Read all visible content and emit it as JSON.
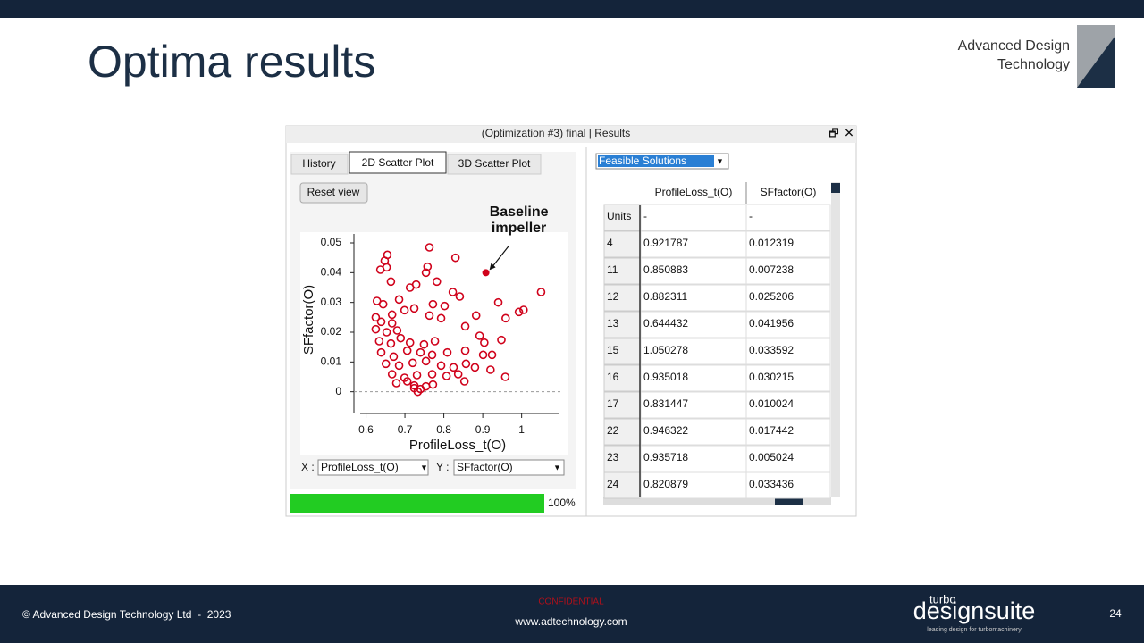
{
  "slide": {
    "title": "Optima results",
    "logo": [
      "Advanced Design",
      "Technology"
    ],
    "page": "24"
  },
  "window": {
    "title": "(Optimization #3) final | Results",
    "tabs": [
      "History",
      "2D Scatter Plot",
      "3D Scatter Plot"
    ],
    "reset": "Reset view",
    "filter": "Feasible Solutions",
    "x_label": "X :",
    "x_select": "ProfileLoss_t(O)",
    "y_label": "Y :",
    "y_select": "SFfactor(O)",
    "progress": {
      "value": 100,
      "label": "100%"
    }
  },
  "chart_data": {
    "type": "scatter",
    "xlabel": "ProfileLoss_t(O)",
    "ylabel": "SFfactor(O)",
    "xlim": [
      0.585,
      1.095
    ],
    "ylim": [
      -0.007,
      0.053
    ],
    "xticks": [
      0.6,
      0.7,
      0.8,
      0.9,
      1
    ],
    "yticks": [
      0,
      0.01,
      0.02,
      0.03,
      0.04,
      0.05
    ],
    "series": [
      {
        "color": "#d0021b",
        "x": [
          0.655,
          0.648,
          0.637,
          0.653,
          0.763,
          0.83,
          0.758,
          0.754,
          0.664,
          0.729,
          0.713,
          0.782,
          0.823,
          0.841,
          1.05,
          0.94,
          1.005,
          0.993,
          0.628,
          0.644,
          0.685,
          0.699,
          0.724,
          0.772,
          0.802,
          0.883,
          0.959,
          0.625,
          0.639,
          0.667,
          0.763,
          0.793,
          0.855,
          0.625,
          0.653,
          0.68,
          0.892,
          0.904,
          0.948,
          0.634,
          0.664,
          0.713,
          0.749,
          0.777,
          0.639,
          0.671,
          0.706,
          0.74,
          0.77,
          0.809,
          0.855,
          0.901,
          0.924,
          0.651,
          0.685,
          0.72,
          0.754,
          0.793,
          0.825,
          0.857,
          0.88,
          0.92,
          0.667,
          0.699,
          0.731,
          0.77,
          0.807,
          0.837,
          0.958,
          0.678,
          0.706,
          0.724,
          0.74,
          0.754,
          0.772,
          0.853,
          0.733,
          0.724,
          0.667,
          0.689
        ],
        "values": [
          0.046,
          0.044,
          0.041,
          0.0418,
          0.0485,
          0.045,
          0.042,
          0.04,
          0.037,
          0.036,
          0.035,
          0.037,
          0.0335,
          0.032,
          0.0335,
          0.03,
          0.0275,
          0.0268,
          0.0305,
          0.0294,
          0.031,
          0.0274,
          0.028,
          0.0294,
          0.0288,
          0.0256,
          0.0247,
          0.025,
          0.0235,
          0.0259,
          0.0256,
          0.0247,
          0.022,
          0.021,
          0.02,
          0.0206,
          0.0188,
          0.0165,
          0.0174,
          0.017,
          0.0162,
          0.0165,
          0.0159,
          0.017,
          0.0132,
          0.0118,
          0.0138,
          0.0132,
          0.0124,
          0.0132,
          0.0138,
          0.0124,
          0.0124,
          0.0094,
          0.0088,
          0.0097,
          0.0103,
          0.0088,
          0.0082,
          0.0094,
          0.0082,
          0.0074,
          0.0059,
          0.0047,
          0.0056,
          0.0059,
          0.0053,
          0.0059,
          0.005,
          0.0029,
          0.0035,
          0.0021,
          0.0009,
          0.0018,
          0.0024,
          0.0035,
          0,
          0.0012,
          0.023,
          0.018
        ]
      }
    ],
    "annotation": {
      "lines": [
        "Baseline",
        "impeller"
      ],
      "x": 0.908,
      "y": 0.04,
      "color": "#d0021b"
    }
  },
  "table": {
    "header": [
      "ProfileLoss_t(O)",
      "SFfactor(O)"
    ],
    "units": [
      "Units",
      "-",
      "-"
    ],
    "rows": [
      [
        "4",
        "0.921787",
        "0.012319"
      ],
      [
        "11",
        "0.850883",
        "0.007238"
      ],
      [
        "12",
        "0.882311",
        "0.025206"
      ],
      [
        "13",
        "0.644432",
        "0.041956"
      ],
      [
        "15",
        "1.050278",
        "0.033592"
      ],
      [
        "16",
        "0.935018",
        "0.030215"
      ],
      [
        "17",
        "0.831447",
        "0.010024"
      ],
      [
        "22",
        "0.946322",
        "0.017442"
      ],
      [
        "23",
        "0.935718",
        "0.005024"
      ],
      [
        "24",
        "0.820879",
        "0.033436"
      ]
    ]
  },
  "footer": {
    "copyright": "© Advanced Design Technology Ltd  -  2023",
    "confidential": "CONFIDENTIAL",
    "url": "www.adtechnology.com",
    "brand_small": "turbo",
    "brand": "designsuite",
    "tagline": "leading design for turbomachinery"
  }
}
